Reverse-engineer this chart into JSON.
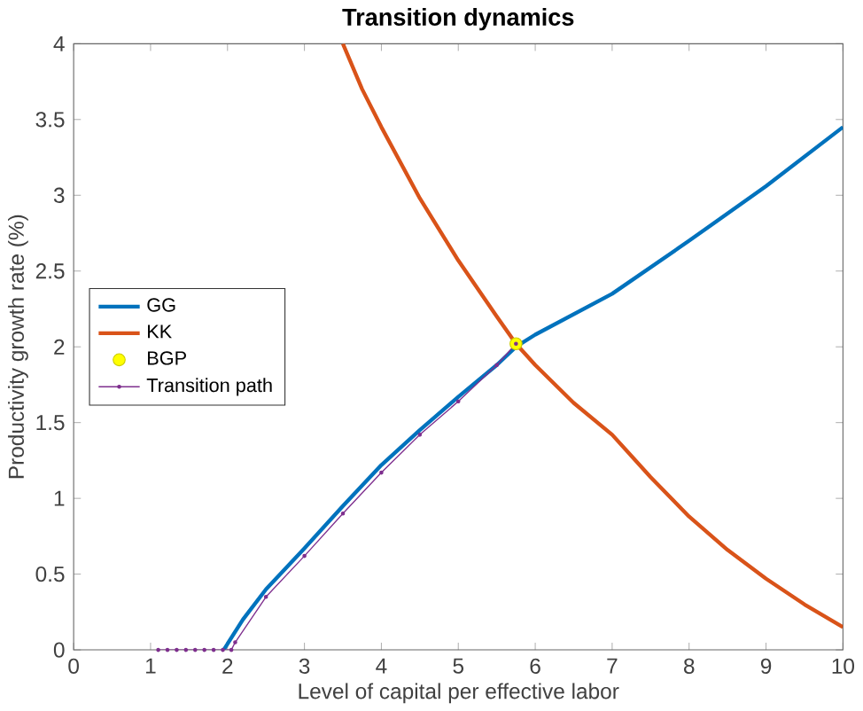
{
  "chart_data": {
    "type": "line",
    "title": "Transition dynamics",
    "xlabel": "Level of capital per effective labor",
    "ylabel": "Productivity growth rate (%)",
    "xlim": [
      0,
      10
    ],
    "ylim": [
      0,
      4
    ],
    "xticks": [
      0,
      1,
      2,
      3,
      4,
      5,
      6,
      7,
      8,
      9,
      10
    ],
    "yticks": [
      0,
      0.5,
      1,
      1.5,
      2,
      2.5,
      3,
      3.5,
      4
    ],
    "legend": "left",
    "grid": false,
    "series": [
      {
        "name": "GG",
        "color": "#0072bd",
        "marker": "none",
        "x": [
          1.95,
          2.2,
          2.5,
          3,
          3.5,
          4,
          4.5,
          5,
          5.5,
          5.75,
          6,
          7,
          8,
          9,
          10
        ],
        "values": [
          0,
          0.2,
          0.4,
          0.67,
          0.95,
          1.22,
          1.45,
          1.67,
          1.88,
          2.0,
          2.08,
          2.35,
          2.7,
          3.06,
          3.45
        ]
      },
      {
        "name": "KK",
        "color": "#d95319",
        "marker": "none",
        "x": [
          3.5,
          3.75,
          4,
          4.5,
          5,
          5.5,
          5.75,
          6,
          6.5,
          7,
          7.5,
          8,
          8.5,
          9,
          9.5,
          10
        ],
        "values": [
          4,
          3.7,
          3.45,
          2.98,
          2.57,
          2.2,
          2.02,
          1.88,
          1.63,
          1.42,
          1.14,
          0.88,
          0.66,
          0.47,
          0.3,
          0.15
        ]
      },
      {
        "name": "BGP",
        "type": "scatter",
        "color": "#ffff00",
        "marker": "circle",
        "x": [
          5.75
        ],
        "values": [
          2.02
        ]
      },
      {
        "name": "Transition path",
        "color": "#7e2f8e",
        "marker": "circle",
        "x": [
          1.1,
          1.22,
          1.34,
          1.46,
          1.58,
          1.7,
          1.82,
          1.94,
          2.05,
          2.1,
          2.5,
          3,
          3.5,
          4,
          4.5,
          5,
          5.5,
          5.75
        ],
        "values": [
          0,
          0,
          0,
          0,
          0,
          0,
          0,
          0,
          0,
          0.05,
          0.35,
          0.62,
          0.9,
          1.17,
          1.42,
          1.64,
          1.88,
          2.02
        ]
      }
    ]
  }
}
